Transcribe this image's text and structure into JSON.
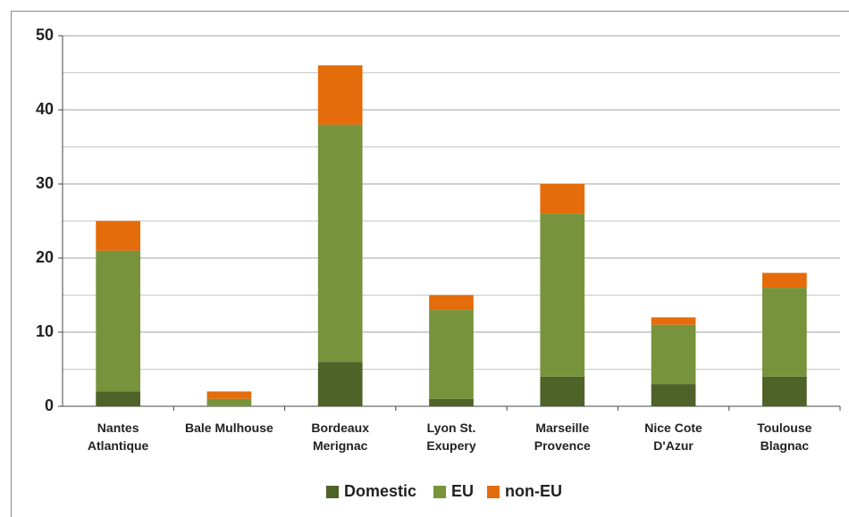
{
  "chart_data": {
    "type": "stacked_bar",
    "categories": [
      "Nantes\nAtlantique",
      "Bale Mulhouse",
      "Bordeaux\nMerignac",
      "Lyon St.\nExupery",
      "Marseille\nProvence",
      "Nice Cote\nD'Azur",
      "Toulouse\nBlagnac"
    ],
    "series": [
      {
        "name": "Domestic",
        "color": "#4f6228",
        "values": [
          2,
          0,
          6,
          1,
          4,
          3,
          4
        ]
      },
      {
        "name": "EU",
        "color": "#77933c",
        "values": [
          19,
          1,
          32,
          12,
          22,
          8,
          12
        ]
      },
      {
        "name": "non-EU",
        "color": "#e46c0a",
        "values": [
          4,
          1,
          8,
          2,
          4,
          1,
          2
        ]
      }
    ],
    "ylim": [
      0,
      50
    ],
    "yticks": [
      0,
      10,
      20,
      30,
      40,
      50
    ],
    "minor_yticks": [
      5,
      15,
      25,
      35,
      45
    ],
    "grid": true,
    "legend": "bottom"
  }
}
